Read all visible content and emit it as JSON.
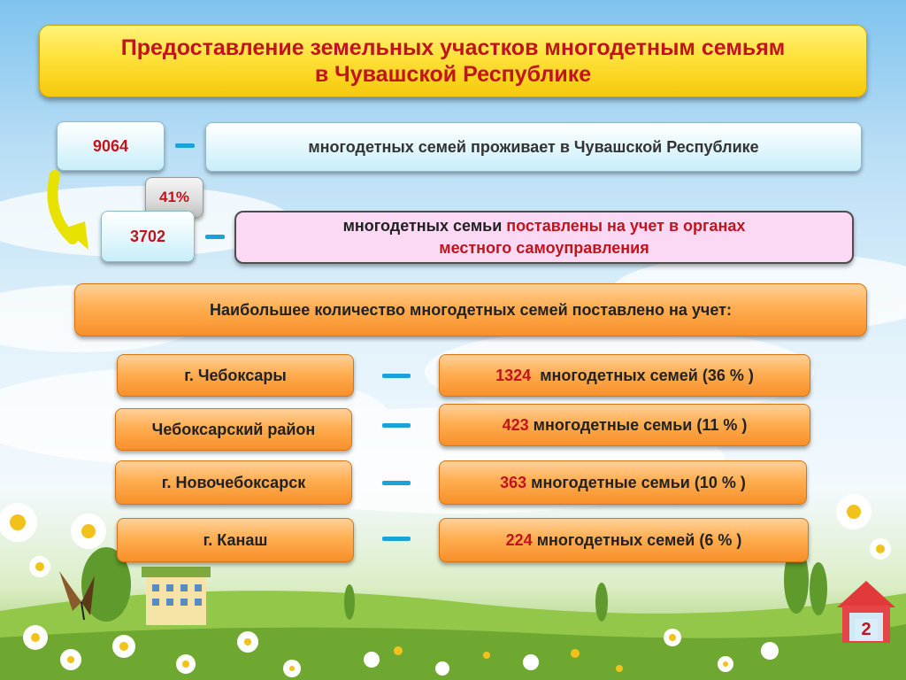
{
  "title": {
    "line1": "Предоставление земельных участков многодетным семьям",
    "line2": "в Чувашской Республике"
  },
  "total": {
    "number": "9064",
    "description": "многодетных семей проживает в Чувашской Республике"
  },
  "percent": "41%",
  "registered": {
    "number": "3702",
    "description_part1": "многодетных семьи ",
    "description_part2": "поставлены на учет в органах",
    "description_line2": "местного самоуправления"
  },
  "section_header": "Наибольшее количество многодетных семей поставлено на учет:",
  "rows": [
    {
      "place": "г. Чебоксары",
      "count": "1324",
      "text": "многодетных семей (36 % )"
    },
    {
      "place": "Чебоксарский район",
      "count": "423",
      "text": "многодетные семьи (11 % )"
    },
    {
      "place": "г. Новочебоксарск",
      "count": "363",
      "text": "многодетные семьи (10 % )"
    },
    {
      "place": "г. Канаш",
      "count": "224",
      "text": "многодетных семей (6 % )"
    }
  ],
  "page_number": "2",
  "colors": {
    "accent_red": "#c1141d",
    "title_yellow": "#ffe13a",
    "orange": "#f7902a",
    "dash_blue": "#1aa3d8",
    "pink": "#fbd9f5"
  }
}
